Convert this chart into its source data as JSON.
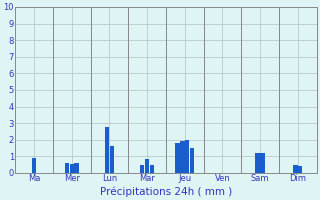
{
  "bar_values": [
    0.9,
    0.6,
    0.55,
    0.6,
    2.75,
    1.6,
    0.5,
    0.85,
    0.5,
    1.8,
    1.95,
    2.0,
    1.5,
    1.2,
    1.2,
    0.5,
    0.4
  ],
  "bar_color": "#1a5dcc",
  "background_color": "#dff5f5",
  "grid_color": "#b0c0c0",
  "text_color": "#3333bb",
  "xlabel": "Précipitations 24h ( mm )",
  "ylim": [
    0,
    10
  ],
  "yticks": [
    0,
    1,
    2,
    3,
    4,
    5,
    6,
    7,
    8,
    9,
    10
  ],
  "day_labels": [
    "Ma",
    "Mer",
    "Lun",
    "Mar",
    "Jeu",
    "Ven",
    "Sam",
    "Dim"
  ],
  "separator_color": "#888888",
  "spine_color": "#888888"
}
